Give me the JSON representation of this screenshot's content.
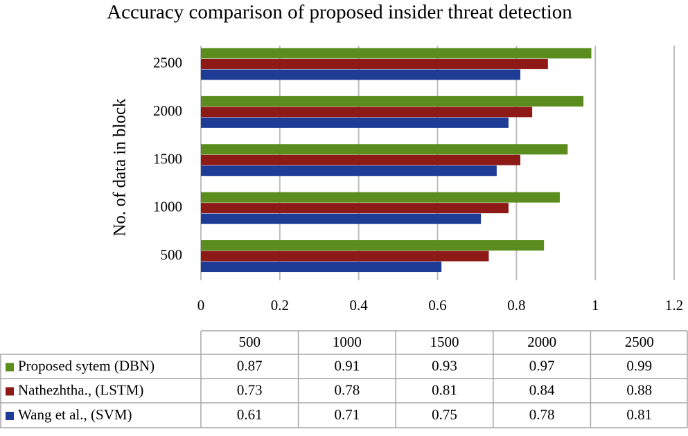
{
  "chart_data": {
    "type": "hbar",
    "title": "Accuracy comparison of proposed insider threat detection",
    "y_label": "No. of data in block",
    "categories": [
      "500",
      "1000",
      "1500",
      "2000",
      "2500"
    ],
    "series": [
      {
        "name": "Proposed sytem (DBN)",
        "color": "#5b8c1e",
        "values": [
          0.87,
          0.91,
          0.93,
          0.97,
          0.99
        ]
      },
      {
        "name": "Nathezhtha., (LSTM)",
        "color": "#8e1a18",
        "values": [
          0.73,
          0.78,
          0.81,
          0.84,
          0.88
        ]
      },
      {
        "name": "Wang et al., (SVM)",
        "color": "#1e3c96",
        "values": [
          0.61,
          0.71,
          0.75,
          0.78,
          0.81
        ]
      }
    ],
    "xlim": [
      0,
      1.2
    ],
    "xticks": [
      0,
      0.2,
      0.4,
      0.6,
      0.8,
      1,
      1.2
    ],
    "grid": true,
    "data_table": true
  }
}
